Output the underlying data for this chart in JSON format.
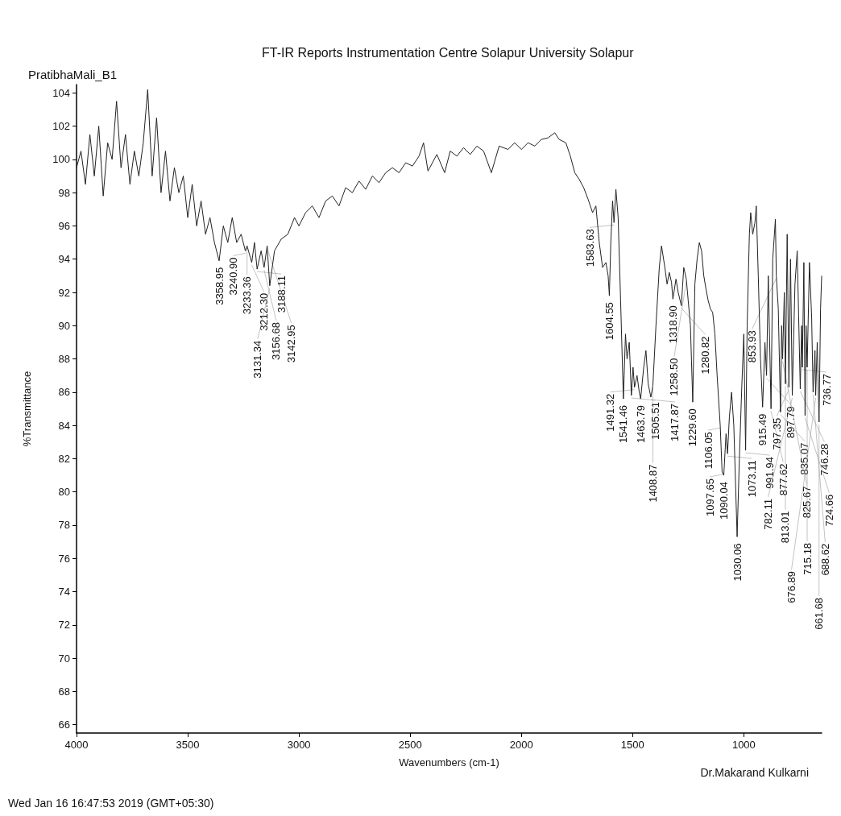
{
  "chart_data": {
    "type": "line",
    "title": "FT-IR Reports Instrumentation Centre Solapur University Solapur",
    "subtitle": "PratibhaMali_B1",
    "xlabel": "Wavenumbers (cm-1)",
    "ylabel": "%Transmittance",
    "xlim": [
      4000,
      650
    ],
    "xticks": [
      4000,
      3500,
      3000,
      2500,
      2000,
      1500,
      1000
    ],
    "ylim": [
      65.5,
      104.5
    ],
    "yticks": [
      66,
      68,
      70,
      72,
      74,
      76,
      78,
      80,
      82,
      84,
      86,
      88,
      90,
      92,
      94,
      96,
      98,
      100,
      102,
      104
    ],
    "series": [
      {
        "color": "#222222",
        "x": [
          4000,
          3980,
          3960,
          3940,
          3920,
          3900,
          3880,
          3860,
          3840,
          3820,
          3800,
          3780,
          3760,
          3740,
          3720,
          3700,
          3680,
          3660,
          3640,
          3620,
          3600,
          3580,
          3560,
          3540,
          3520,
          3500,
          3480,
          3460,
          3440,
          3420,
          3400,
          3380,
          3358.95,
          3340,
          3320,
          3300,
          3280,
          3260,
          3240.9,
          3233.36,
          3212.3,
          3200,
          3188.11,
          3170,
          3156.68,
          3142.95,
          3131.34,
          3110,
          3080,
          3050,
          3020,
          3000,
          2970,
          2940,
          2910,
          2880,
          2850,
          2820,
          2790,
          2760,
          2730,
          2700,
          2670,
          2640,
          2610,
          2580,
          2550,
          2520,
          2490,
          2460,
          2440,
          2420,
          2380,
          2345,
          2320,
          2290,
          2260,
          2230,
          2200,
          2170,
          2135,
          2100,
          2060,
          2030,
          2000,
          1970,
          1940,
          1910,
          1880,
          1850,
          1830,
          1800,
          1780,
          1760,
          1740,
          1720,
          1700,
          1680,
          1665,
          1650,
          1635,
          1620,
          1610,
          1604.55,
          1598,
          1590,
          1583.63,
          1575,
          1565,
          1555,
          1541.46,
          1532,
          1525,
          1515,
          1505.51,
          1498,
          1491.32,
          1480,
          1470,
          1463.79,
          1450,
          1440,
          1430,
          1417.87,
          1408.87,
          1395,
          1380,
          1370,
          1355,
          1345,
          1335,
          1325,
          1318.9,
          1305,
          1295,
          1280.82,
          1270,
          1258.5,
          1250,
          1240,
          1229.6,
          1220,
          1210,
          1200,
          1190,
          1180,
          1170,
          1160,
          1150,
          1140,
          1130,
          1120,
          1106.05,
          1097.65,
          1090.04,
          1080,
          1073.11,
          1065,
          1055,
          1045,
          1030.06,
          1020,
          1010,
          1000,
          991.94,
          985,
          975,
          969,
          960,
          950,
          944,
          935,
          925,
          915.49,
          905,
          897.79,
          890,
          877.62,
          870,
          858,
          853.93,
          845,
          835.07,
          830,
          825.67,
          818,
          813.01,
          805,
          797.35,
          790,
          782.11,
          770,
          760,
          746.28,
          740,
          736.77,
          730,
          724.66,
          720,
          715.18,
          705,
          695,
          688.62,
          680,
          676.89,
          670,
          661.68,
          655,
          650
        ],
        "values": [
          99.5,
          100.5,
          98.5,
          101.5,
          99,
          102,
          97.8,
          101,
          100,
          103.5,
          99.5,
          101.5,
          98.5,
          100.5,
          99,
          101,
          104.2,
          99,
          102.5,
          98,
          100.5,
          97.5,
          99.5,
          98,
          99,
          96.5,
          98.5,
          96,
          97.5,
          95.5,
          96.5,
          95,
          93.9,
          96,
          95,
          96.5,
          95,
          95.5,
          94.5,
          94.8,
          93.8,
          95,
          93.4,
          94.5,
          93.5,
          94.8,
          92.4,
          94.5,
          95.2,
          95.5,
          96.5,
          96,
          96.8,
          97.2,
          96.5,
          97.5,
          97.8,
          97.2,
          98.3,
          98,
          98.7,
          98.2,
          99,
          98.6,
          99.2,
          99.5,
          99.2,
          99.8,
          99.6,
          100.2,
          101,
          99.3,
          100.3,
          99.2,
          100.5,
          100.2,
          100.7,
          100.3,
          100.8,
          100.5,
          99.2,
          100.8,
          100.6,
          101,
          100.6,
          101,
          100.8,
          101.2,
          101.3,
          101.6,
          101.2,
          101,
          100.2,
          99.2,
          98.8,
          98.3,
          97.6,
          96.8,
          97.2,
          95,
          93.5,
          93.8,
          93,
          91.8,
          95,
          97.5,
          96.2,
          98.2,
          96.5,
          92,
          85.6,
          89.5,
          88,
          89,
          85.8,
          87.5,
          86.3,
          87,
          86,
          85.6,
          87.5,
          88.5,
          86.5,
          85.7,
          86.4,
          90,
          93.5,
          94.8,
          93.5,
          92.5,
          93.2,
          92.6,
          91.6,
          92.8,
          92,
          91.2,
          93.5,
          92.8,
          91.5,
          90,
          85.4,
          92.5,
          94,
          95,
          94.5,
          93,
          92.2,
          91.5,
          91,
          90.8,
          89.5,
          87,
          84,
          81.2,
          81,
          83.5,
          82.3,
          84.5,
          86,
          84,
          77.3,
          82,
          86,
          89.5,
          82.5,
          90,
          95.5,
          96.8,
          95.5,
          96.2,
          97.2,
          93,
          88,
          85.1,
          89,
          87,
          93,
          85,
          94,
          96.4,
          93,
          91,
          84.8,
          90,
          88,
          92,
          86.5,
          95.5,
          86.3,
          94,
          85.8,
          92.5,
          94.5,
          86.2,
          90,
          87.5,
          93.8,
          84.6,
          90,
          87.5,
          93.8,
          90.5,
          86,
          88.5,
          85.8,
          89,
          84.2,
          91,
          93
        ]
      }
    ],
    "annotations": [
      "Dr.Makarand Kulkarni",
      "Wed Jan 16 16:47:53 2019 (GMT+05:30)",
      {
        "text": "3358.95",
        "x": 3358.95,
        "y": 93.9
      },
      {
        "text": "3240.90",
        "x": 3240.9,
        "y": 94.5
      },
      {
        "text": "3233.36",
        "x": 3233.36,
        "y": 94.8
      },
      {
        "text": "3212.30",
        "x": 3212.3,
        "y": 93.8
      },
      {
        "text": "3188.11",
        "x": 3188.11,
        "y": 93.4
      },
      {
        "text": "3156.68",
        "x": 3156.68,
        "y": 93.5
      },
      {
        "text": "3142.95",
        "x": 3142.95,
        "y": 94.8
      },
      {
        "text": "3131.34",
        "x": 3131.34,
        "y": 92.4
      },
      {
        "text": "1604.55",
        "x": 1604.55,
        "y": 91.8
      },
      {
        "text": "1583.63",
        "x": 1583.63,
        "y": 96.2
      },
      {
        "text": "1541.46",
        "x": 1541.46,
        "y": 85.6
      },
      {
        "text": "1505.51",
        "x": 1505.51,
        "y": 85.8
      },
      {
        "text": "1491.32",
        "x": 1491.32,
        "y": 86.3
      },
      {
        "text": "1463.79",
        "x": 1463.79,
        "y": 85.6
      },
      {
        "text": "1417.87",
        "x": 1417.87,
        "y": 85.7
      },
      {
        "text": "1408.87",
        "x": 1408.87,
        "y": 86.4
      },
      {
        "text": "1318.90",
        "x": 1318.9,
        "y": 91.6
      },
      {
        "text": "1280.82",
        "x": 1280.82,
        "y": 91.2
      },
      {
        "text": "1258.50",
        "x": 1258.5,
        "y": 92.8
      },
      {
        "text": "1229.60",
        "x": 1229.6,
        "y": 85.4
      },
      {
        "text": "1106.05",
        "x": 1106.05,
        "y": 84
      },
      {
        "text": "1097.65",
        "x": 1097.65,
        "y": 81.2
      },
      {
        "text": "1090.04",
        "x": 1090.04,
        "y": 81
      },
      {
        "text": "1073.11",
        "x": 1073.11,
        "y": 82.3
      },
      {
        "text": "1030.06",
        "x": 1030.06,
        "y": 77.3
      },
      {
        "text": "991.94",
        "x": 991.94,
        "y": 82.5
      },
      {
        "text": "915.49",
        "x": 915.49,
        "y": 85.1
      },
      {
        "text": "897.79",
        "x": 897.79,
        "y": 87
      },
      {
        "text": "877.62",
        "x": 877.62,
        "y": 85
      },
      {
        "text": "853.93",
        "x": 853.93,
        "y": 93
      },
      {
        "text": "835.07",
        "x": 835.07,
        "y": 84.8
      },
      {
        "text": "825.67",
        "x": 825.67,
        "y": 88
      },
      {
        "text": "813.01",
        "x": 813.01,
        "y": 86.5
      },
      {
        "text": "797.35",
        "x": 797.35,
        "y": 86.3
      },
      {
        "text": "782.11",
        "x": 782.11,
        "y": 85.8
      },
      {
        "text": "746.28",
        "x": 746.28,
        "y": 86.2
      },
      {
        "text": "736.77",
        "x": 736.77,
        "y": 87.5
      },
      {
        "text": "724.66",
        "x": 724.66,
        "y": 84.6
      },
      {
        "text": "715.18",
        "x": 715.18,
        "y": 87.5
      },
      {
        "text": "688.62",
        "x": 688.62,
        "y": 86
      },
      {
        "text": "676.89",
        "x": 676.89,
        "y": 85.8
      },
      {
        "text": "661.68",
        "x": 661.68,
        "y": 84.2
      }
    ]
  }
}
